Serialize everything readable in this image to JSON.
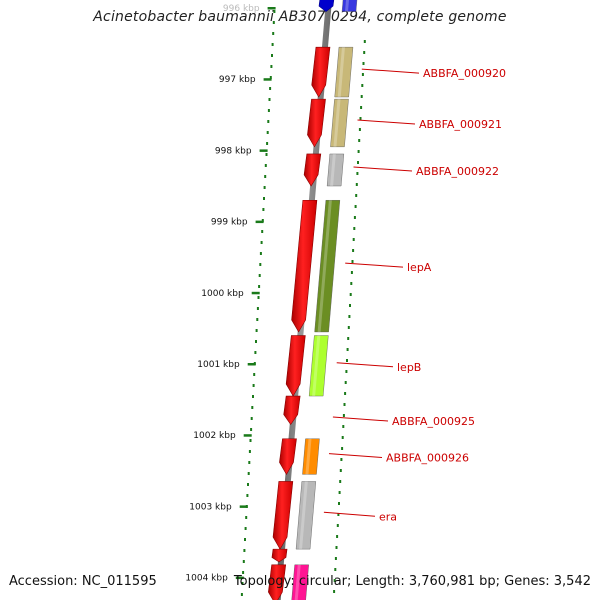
{
  "title": "Acinetobacter baumannii AB307-0294, complete genome",
  "footer": {
    "accession": "Accession: NC_011595",
    "topology": "Topology: circular; Length: 3,760,981 bp; Genes: 3,542"
  },
  "colors": {
    "backbone": "#808080",
    "tick": "#1a7a1a",
    "label": "#cc0000",
    "leader": "#cc0000"
  },
  "scale_ticks": [
    "996 kbp",
    "997 kbp",
    "998 kbp",
    "999 kbp",
    "1000 kbp",
    "1001 kbp",
    "1002 kbp",
    "1003 kbp",
    "1004 kbp"
  ],
  "features": [
    {
      "name": "",
      "arrow_color": "#0000cc",
      "bar_color": "#2222dd",
      "start_kbp": 995.75,
      "end_kbp": 996.05
    },
    {
      "name": "ABBFA_000920",
      "arrow_color": "#ff0000",
      "bar_color": "#c8b878",
      "start_kbp": 996.55,
      "end_kbp": 997.25
    },
    {
      "name": "ABBFA_000921",
      "arrow_color": "#ff0000",
      "bar_color": "#c8b878",
      "start_kbp": 997.28,
      "end_kbp": 997.95
    },
    {
      "name": "ABBFA_000922",
      "arrow_color": "#ff0000",
      "bar_color": "#b8b8b8",
      "start_kbp": 998.05,
      "end_kbp": 998.5
    },
    {
      "name": "lepA",
      "arrow_color": "#ff0000",
      "bar_color": "#6b8e23",
      "start_kbp": 998.7,
      "end_kbp": 1000.55
    },
    {
      "name": "lepB",
      "arrow_color": "#ff0000",
      "bar_color": "#adff2f",
      "start_kbp": 1000.6,
      "end_kbp": 1001.45
    },
    {
      "name": "ABBFA_000925",
      "arrow_color": "#ff0000",
      "bar_color": "",
      "start_kbp": 1001.45,
      "end_kbp": 1001.85
    },
    {
      "name": "ABBFA_000926",
      "arrow_color": "#ff0000",
      "bar_color": "#ff8c00",
      "start_kbp": 1002.05,
      "end_kbp": 1002.55
    },
    {
      "name": "era",
      "arrow_color": "#ff0000",
      "bar_color": "#b8b8b8",
      "start_kbp": 1002.65,
      "end_kbp": 1003.6
    },
    {
      "name": "",
      "arrow_color": "#ff0000",
      "bar_color": "",
      "start_kbp": 1003.6,
      "end_kbp": 1003.78
    },
    {
      "name": "",
      "arrow_color": "#ff0000",
      "bar_color": "#ff1493",
      "start_kbp": 1003.82,
      "end_kbp": 1004.4
    }
  ]
}
